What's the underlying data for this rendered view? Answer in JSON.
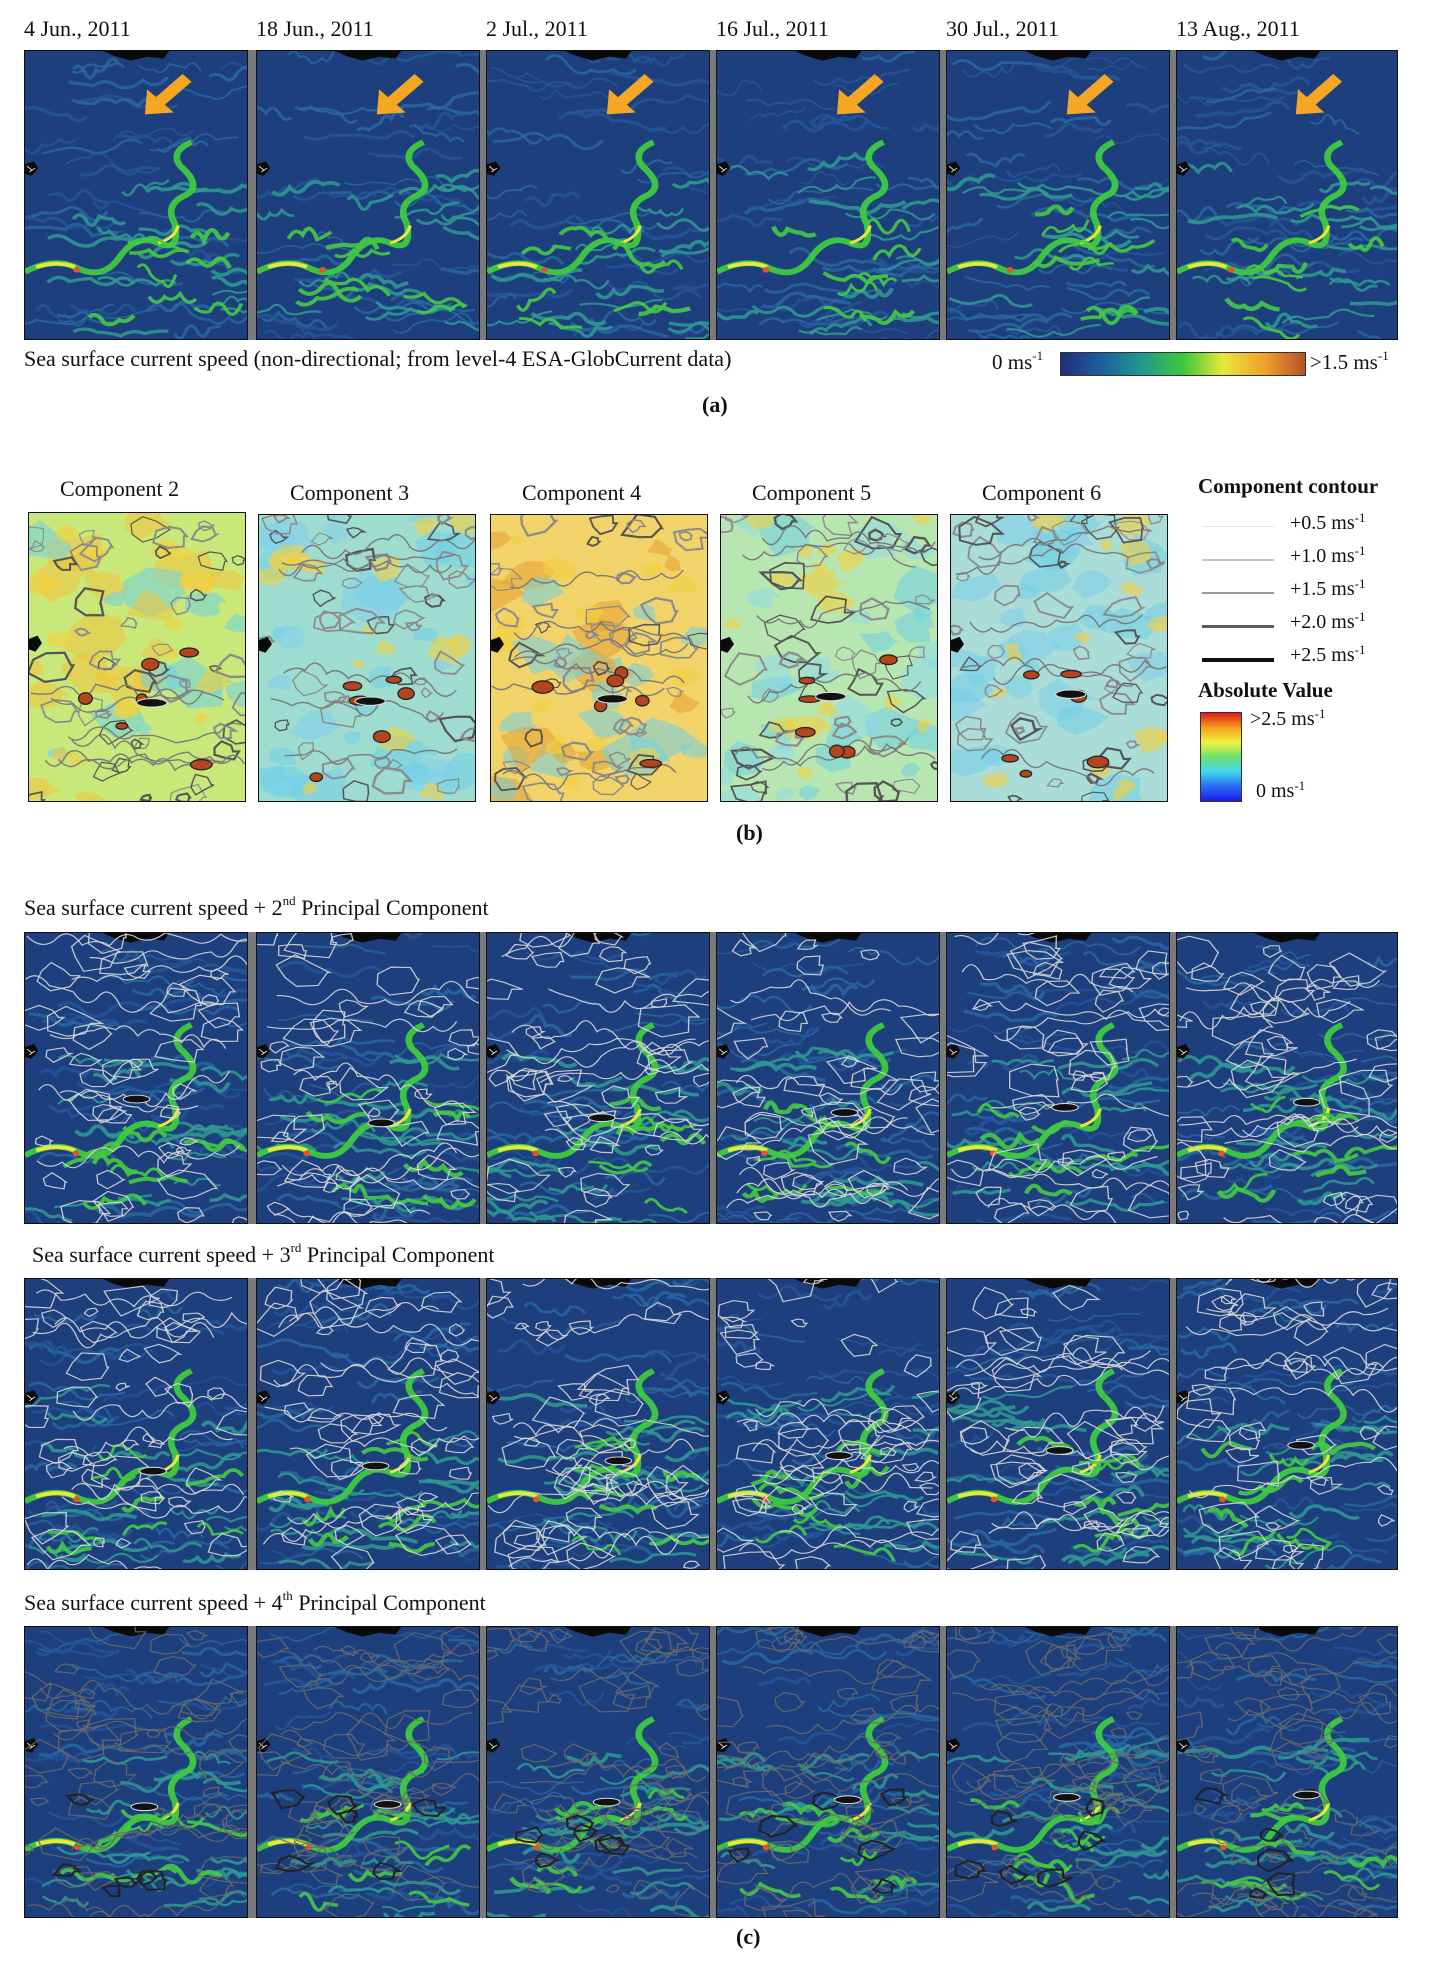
{
  "panel_a": {
    "dates": [
      "4 Jun., 2011",
      "18 Jun., 2011",
      "2 Jul., 2011",
      "16 Jul., 2011",
      "30 Jul., 2011",
      "13 Aug., 2011"
    ],
    "description": "Sea surface current speed (non-directional; from level-4 ESA-GlobCurrent data)",
    "colorbar": {
      "min_label": "0 ms",
      "min_sup": "-1",
      "max_label": ">1.5 ms",
      "max_sup": "-1",
      "colors": [
        "#1f2f7a",
        "#1e5fa0",
        "#1f9a8c",
        "#3cc83c",
        "#e8e83a",
        "#f0a02a",
        "#b8502a"
      ]
    },
    "caption": "(a)",
    "arrow_color": "#f5a623"
  },
  "panel_b": {
    "components": [
      "Component 2",
      "Component 3",
      "Component 4",
      "Component 5",
      "Component 6"
    ],
    "contour_legend": {
      "title": "Component contour",
      "levels": [
        {
          "label": "+0.5 ms",
          "sup": "-1"
        },
        {
          "label": "+1.0 ms",
          "sup": "-1"
        },
        {
          "label": "+1.5 ms",
          "sup": "-1"
        },
        {
          "label": "+2.0 ms",
          "sup": "-1"
        },
        {
          "label": "+2.5 ms",
          "sup": "-1"
        }
      ]
    },
    "absolute_legend": {
      "title": "Absolute Value",
      "max_label": ">2.5 ms",
      "max_sup": "-1",
      "min_label": "0 ms",
      "min_sup": "-1",
      "colors": [
        "#e01b1b",
        "#f4a020",
        "#f0f040",
        "#6ee06e",
        "#40d8f0",
        "#2a6cf0",
        "#1a1af0"
      ]
    },
    "caption": "(b)"
  },
  "panel_c": {
    "rows": [
      {
        "prefix": "Sea surface current speed + 2",
        "ordinal": "nd",
        "suffix": " Principal Component"
      },
      {
        "prefix": "Sea surface current speed + 3",
        "ordinal": "rd",
        "suffix": " Principal Component"
      },
      {
        "prefix": "Sea surface current speed + 4",
        "ordinal": "th",
        "suffix": " Principal Component"
      }
    ],
    "caption": "(c)"
  }
}
